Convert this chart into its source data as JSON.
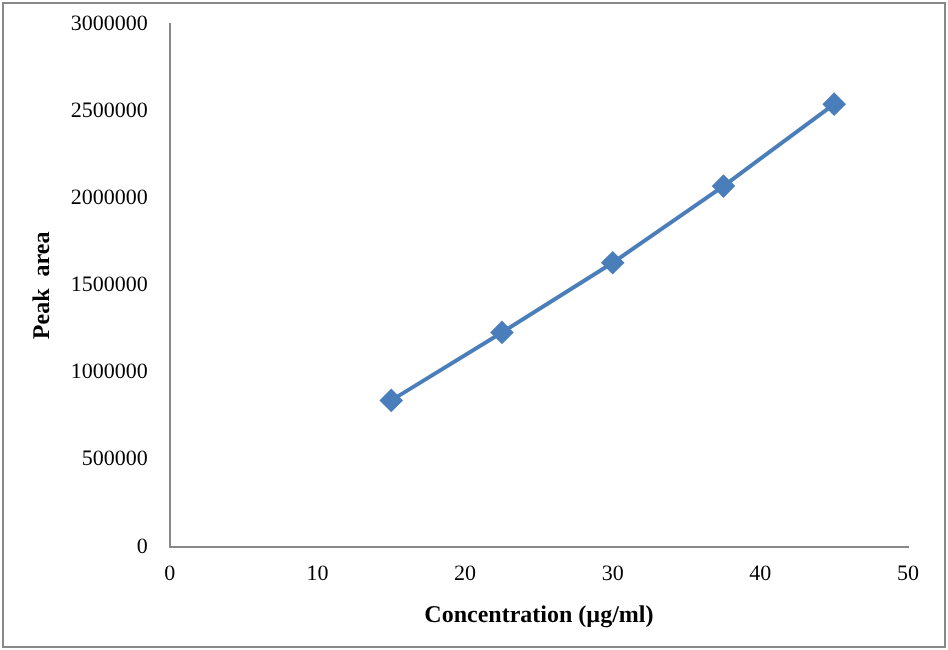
{
  "chart_data": {
    "type": "scatter",
    "xlabel": "Concentration (µg/ml)",
    "ylabel": "Peak  area",
    "x": [
      15,
      22.5,
      30,
      37.5,
      45
    ],
    "series": [
      {
        "type": "line",
        "color": "#4a7ebb",
        "values": [
          840000,
          1230000,
          1630000,
          2070000,
          2540000
        ]
      }
    ],
    "xlim": [
      0,
      50
    ],
    "xticks": [
      0,
      10,
      20,
      30,
      40,
      50
    ],
    "ylim": [
      0,
      3000000
    ],
    "yticks": [
      0,
      500000,
      1000000,
      1500000,
      2000000,
      2500000,
      3000000
    ],
    "grid": false,
    "legend": false,
    "marker": "diamond",
    "line_style": "solid"
  }
}
